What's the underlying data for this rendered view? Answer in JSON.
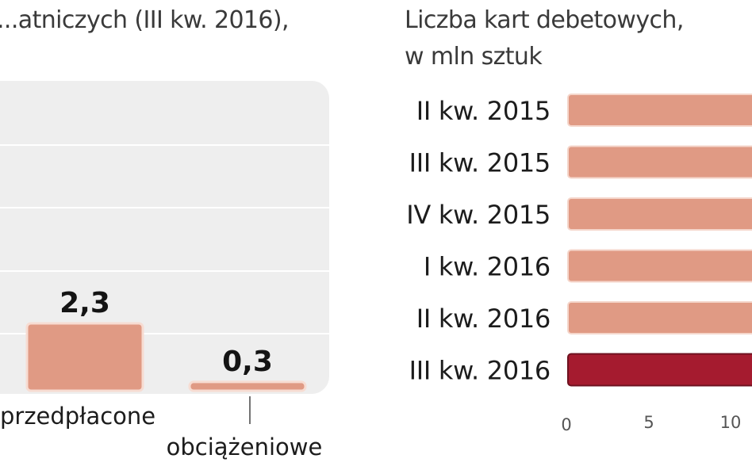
{
  "chart_data": [
    {
      "type": "bar",
      "title": "...atniczych (III kw. 2016),",
      "categories": [
        "przedpłacone",
        "obciążeniowe"
      ],
      "values": [
        2.3,
        0.3
      ],
      "value_labels": [
        "2,3",
        "0,3"
      ],
      "grid": true,
      "colors": {
        "bar": "#e09a84",
        "bar_edge": "#f7dcd2",
        "plot_bg": "#eeeeee",
        "gridline": "#ffffff"
      }
    },
    {
      "type": "bar",
      "orientation": "horizontal",
      "title": "Liczba kart debetowych,",
      "subtitle": "w mln sztuk",
      "categories": [
        "II kw. 2015",
        "III kw. 2015",
        "IV kw. 2015",
        "I kw. 2016",
        "II kw. 2016",
        "III kw. 2016"
      ],
      "x_ticks": [
        "0",
        "5",
        "10"
      ],
      "colors": {
        "bar": "#e09a84",
        "highlight": "#a51b2f",
        "bar_edge": "#f5d6cb"
      }
    }
  ]
}
